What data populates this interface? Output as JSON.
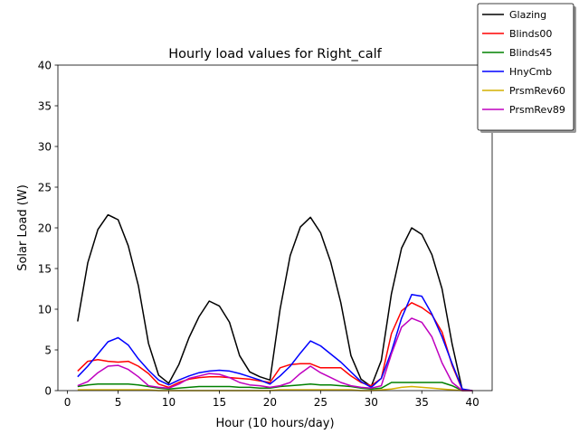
{
  "chart_data": {
    "type": "line",
    "title": "Hourly load values for Right_calf",
    "xlabel": "Hour (10 hours/day)",
    "ylabel": "Solar Load (W)",
    "xlim": [
      -0.95,
      41.95
    ],
    "ylim": [
      0,
      40
    ],
    "xticks": [
      0,
      5,
      10,
      15,
      20,
      25,
      30,
      35,
      40
    ],
    "yticks": [
      0,
      5,
      10,
      15,
      20,
      25,
      30,
      35,
      40
    ],
    "grid": false,
    "legend_position": "top-right",
    "x": [
      1,
      2,
      3,
      4,
      5,
      6,
      7,
      8,
      9,
      10,
      11,
      12,
      13,
      14,
      15,
      16,
      17,
      18,
      19,
      20,
      21,
      22,
      23,
      24,
      25,
      26,
      27,
      28,
      29,
      30,
      31,
      32,
      33,
      34,
      35,
      36,
      37,
      38,
      39,
      40
    ],
    "series": [
      {
        "name": "Glazing",
        "color": "#000000",
        "values": [
          8.5,
          15.7,
          19.8,
          21.6,
          21.0,
          17.8,
          12.9,
          5.8,
          1.9,
          0.9,
          3.2,
          6.5,
          9.1,
          11.0,
          10.4,
          8.4,
          4.3,
          2.3,
          1.7,
          1.3,
          10.0,
          16.6,
          20.1,
          21.3,
          19.4,
          15.8,
          10.8,
          4.3,
          1.4,
          0.5,
          3.7,
          11.9,
          17.5,
          20.0,
          19.2,
          16.7,
          12.5,
          5.7,
          0.1,
          0.0
        ]
      },
      {
        "name": "Blinds00",
        "color": "#ff0000",
        "values": [
          2.4,
          3.6,
          3.8,
          3.6,
          3.5,
          3.6,
          3.0,
          2.1,
          0.8,
          0.4,
          1.0,
          1.4,
          1.6,
          1.7,
          1.7,
          1.6,
          1.5,
          1.4,
          1.2,
          1.0,
          2.8,
          3.2,
          3.3,
          3.3,
          2.8,
          2.8,
          2.8,
          1.8,
          1.0,
          0.6,
          1.5,
          7.0,
          9.8,
          10.8,
          10.2,
          9.3,
          7.2,
          3.1,
          0.1,
          0.0
        ]
      },
      {
        "name": "Blinds45",
        "color": "#008000",
        "values": [
          0.5,
          0.7,
          0.8,
          0.8,
          0.8,
          0.8,
          0.7,
          0.5,
          0.3,
          0.2,
          0.3,
          0.4,
          0.5,
          0.5,
          0.5,
          0.5,
          0.4,
          0.4,
          0.3,
          0.3,
          0.5,
          0.6,
          0.7,
          0.8,
          0.7,
          0.7,
          0.6,
          0.5,
          0.3,
          0.2,
          0.3,
          1.0,
          1.0,
          1.0,
          1.0,
          1.0,
          1.0,
          0.6,
          0.0,
          0.0
        ]
      },
      {
        "name": "HnyCmb",
        "color": "#0000ff",
        "values": [
          1.7,
          3.0,
          4.5,
          6.0,
          6.5,
          5.6,
          3.9,
          2.5,
          1.3,
          0.7,
          1.3,
          1.8,
          2.2,
          2.4,
          2.5,
          2.4,
          2.1,
          1.7,
          1.3,
          0.8,
          1.8,
          3.0,
          4.6,
          6.1,
          5.5,
          4.5,
          3.5,
          2.3,
          1.1,
          0.4,
          1.5,
          4.8,
          8.9,
          11.8,
          11.6,
          9.4,
          6.6,
          3.3,
          0.2,
          0.0
        ]
      },
      {
        "name": "PrsmRev60",
        "color": "#d4b000",
        "values": [
          0.1,
          0.1,
          0.1,
          0.1,
          0.1,
          0.1,
          0.1,
          0.1,
          0.0,
          0.0,
          0.0,
          0.0,
          0.0,
          0.0,
          0.0,
          0.0,
          0.0,
          0.0,
          0.0,
          0.0,
          0.1,
          0.1,
          0.1,
          0.1,
          0.1,
          0.1,
          0.1,
          0.1,
          0.0,
          0.0,
          0.1,
          0.2,
          0.4,
          0.5,
          0.4,
          0.3,
          0.2,
          0.1,
          0.0,
          0.0
        ]
      },
      {
        "name": "PrsmRev89",
        "color": "#bf00bf",
        "values": [
          0.6,
          1.1,
          2.2,
          3.0,
          3.1,
          2.6,
          1.7,
          0.6,
          0.4,
          0.3,
          0.8,
          1.5,
          1.8,
          2.1,
          2.0,
          1.6,
          1.0,
          0.7,
          0.6,
          0.4,
          0.6,
          1.0,
          2.1,
          3.0,
          2.2,
          1.6,
          1.0,
          0.6,
          0.4,
          0.3,
          0.6,
          4.5,
          7.8,
          8.9,
          8.4,
          6.6,
          3.4,
          1.0,
          0.0,
          0.0
        ]
      }
    ]
  }
}
